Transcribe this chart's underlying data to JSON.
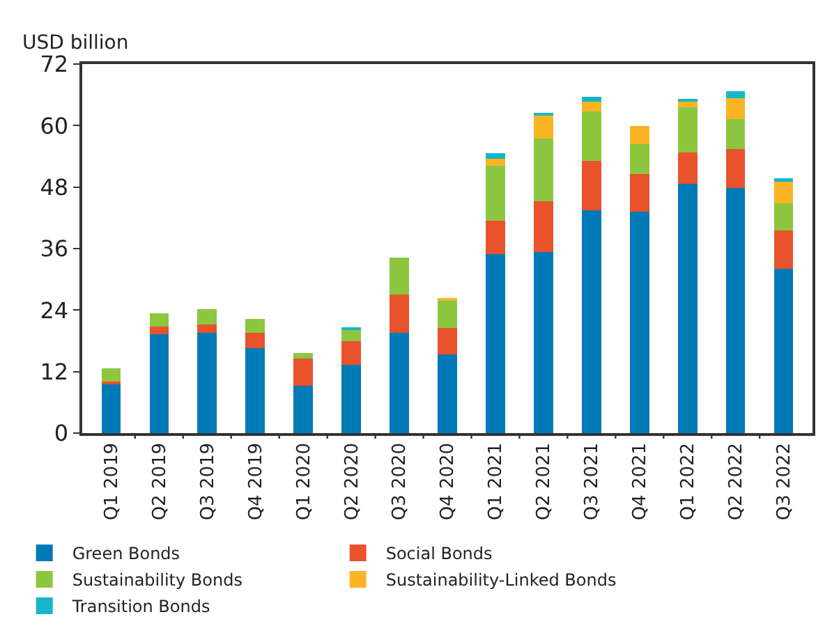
{
  "chart_data": {
    "type": "bar",
    "stacked": true,
    "ylabel": "USD billion",
    "categories": [
      "Q1 2019",
      "Q2 2019",
      "Q3 2019",
      "Q4 2019",
      "Q1 2020",
      "Q2 2020",
      "Q3 2020",
      "Q4 2020",
      "Q1 2021",
      "Q2 2021",
      "Q3 2021",
      "Q4 2021",
      "Q1 2022",
      "Q2 2022",
      "Q3 2022"
    ],
    "series": [
      {
        "name": "Green Bonds",
        "color": "#0079b7",
        "values": [
          9.6,
          19.3,
          19.6,
          16.6,
          9.3,
          13.3,
          19.5,
          15.4,
          34.9,
          35.3,
          43.5,
          43.2,
          48.7,
          47.8,
          32.0
        ]
      },
      {
        "name": "Social Bonds",
        "color": "#e8532b",
        "values": [
          0.4,
          1.5,
          1.6,
          3.0,
          5.3,
          4.6,
          7.5,
          5.1,
          6.6,
          9.9,
          9.6,
          7.4,
          6.0,
          7.6,
          7.5
        ]
      },
      {
        "name": "Sustainability Bonds",
        "color": "#8dc63f",
        "values": [
          2.6,
          2.5,
          3.0,
          2.7,
          1.0,
          2.3,
          7.2,
          5.4,
          10.6,
          12.3,
          9.6,
          5.8,
          8.9,
          5.9,
          5.3
        ]
      },
      {
        "name": "Sustainability-Linked Bonds",
        "color": "#fbb424",
        "values": [
          null,
          null,
          null,
          null,
          null,
          null,
          null,
          0.4,
          1.4,
          4.6,
          2.0,
          3.5,
          1.2,
          4.0,
          4.3
        ]
      },
      {
        "name": "Transition Bonds",
        "color": "#16b6c9",
        "values": [
          null,
          null,
          null,
          null,
          null,
          0.4,
          null,
          null,
          1.1,
          0.3,
          0.9,
          null,
          0.2,
          1.4,
          0.6
        ]
      }
    ],
    "ylim": [
      0,
      72
    ],
    "yticks": [
      0,
      12,
      24,
      36,
      48,
      60,
      72
    ],
    "legend": "bottom"
  }
}
